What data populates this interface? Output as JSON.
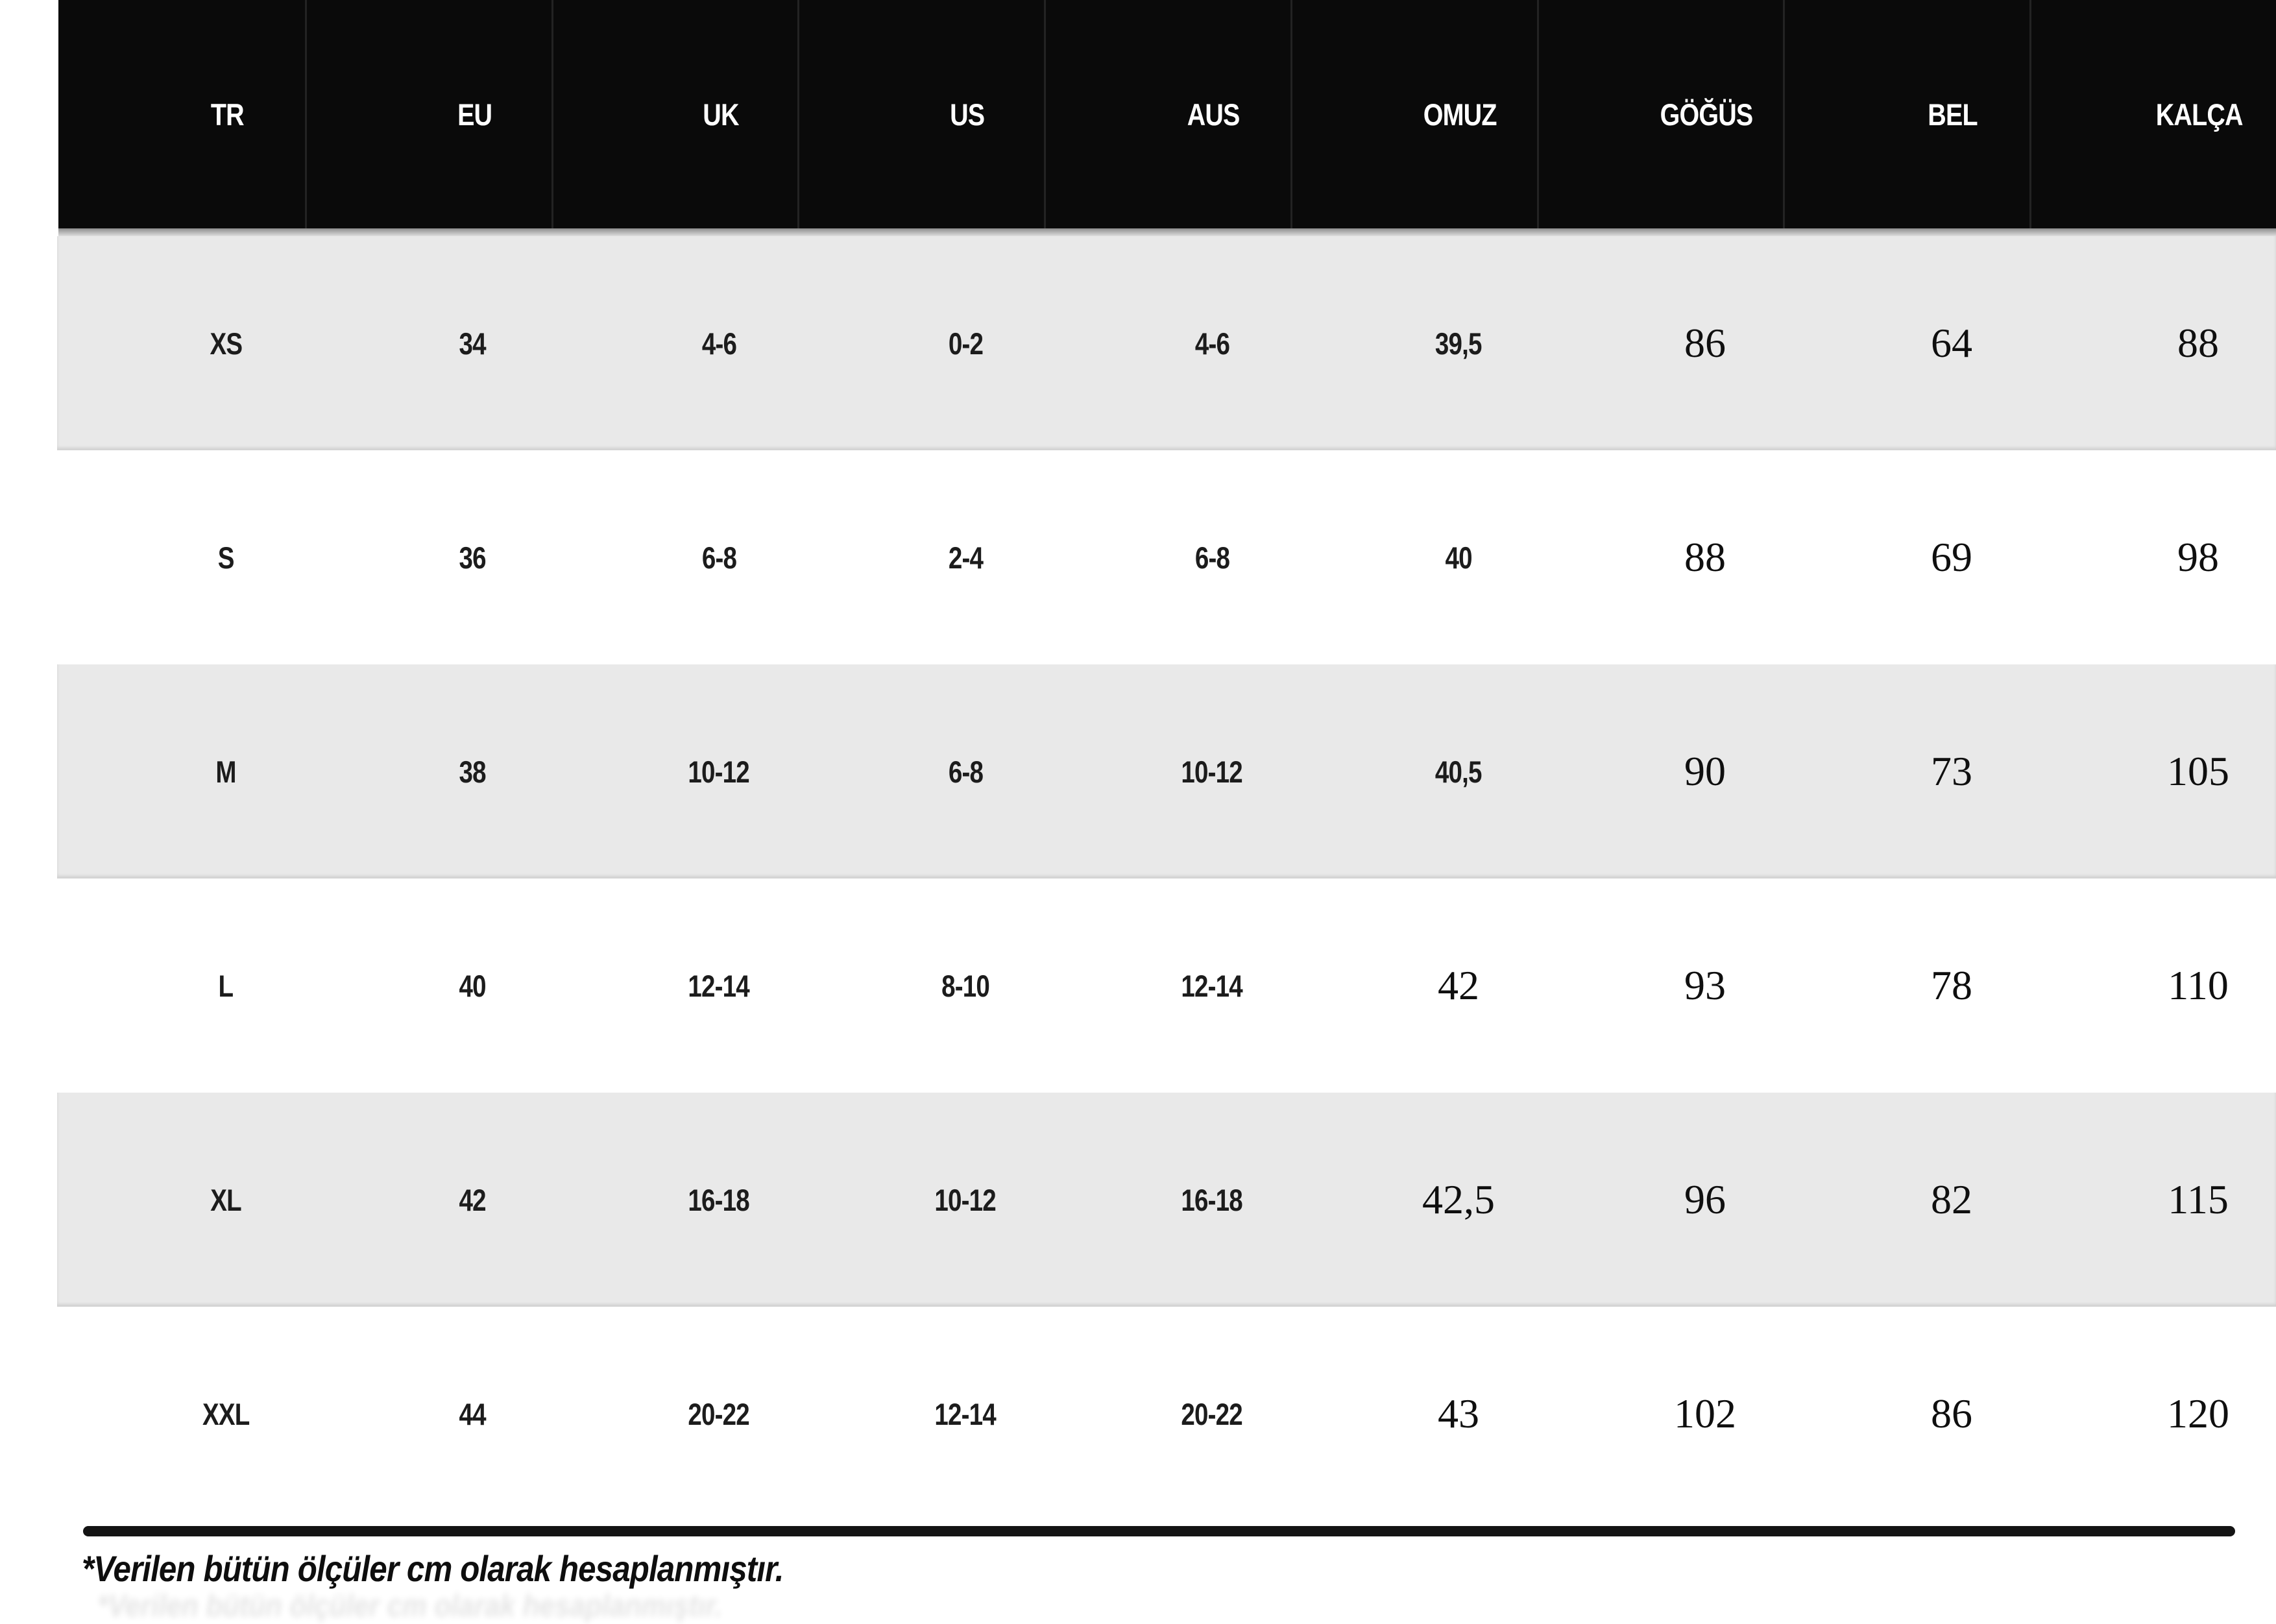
{
  "chart_data": {
    "type": "table",
    "columns": [
      "TR",
      "EU",
      "UK",
      "US",
      "AUS",
      "OMUZ",
      "GÖĞÜS",
      "BEL",
      "KALÇA"
    ],
    "rows": [
      [
        "XS",
        "34",
        "4-6",
        "0-2",
        "4-6",
        "39,5",
        "86",
        "64",
        "88"
      ],
      [
        "S",
        "36",
        "6-8",
        "2-4",
        "6-8",
        "40",
        "88",
        "69",
        "98"
      ],
      [
        "M",
        "38",
        "10-12",
        "6-8",
        "10-12",
        "40,5",
        "90",
        "73",
        "105"
      ],
      [
        "L",
        "40",
        "12-14",
        "8-10",
        "12-14",
        "42",
        "93",
        "78",
        "110"
      ],
      [
        "XL",
        "42",
        "16-18",
        "10-12",
        "16-18",
        "42,5",
        "96",
        "82",
        "115"
      ],
      [
        "XXL",
        "44",
        "20-22",
        "12-14",
        "20-22",
        "43",
        "102",
        "86",
        "120"
      ]
    ],
    "note": "*Verilen bütün ölçüler cm olarak hesaplanmıştır.",
    "units": "cm"
  },
  "colors": {
    "header_bg": "#0a0a0a",
    "header_text": "#ffffff",
    "stripe_gray": "#e9e9e9",
    "text": "#111111",
    "rule": "#141414"
  }
}
